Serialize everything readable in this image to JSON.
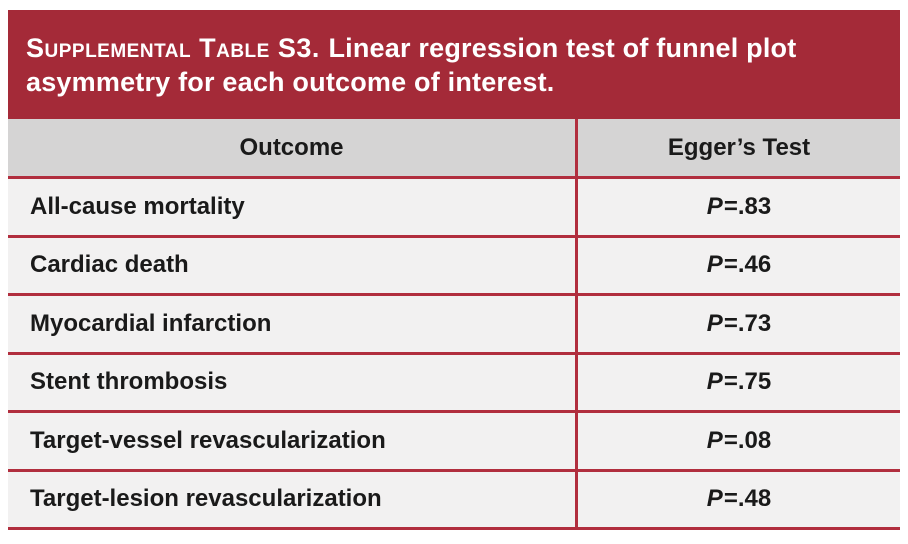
{
  "title": {
    "label_smallcaps": "Supplemental Table S3.",
    "label_rest": "Linear regression test of funnel plot asymmetry for each outcome of interest."
  },
  "columns": {
    "outcome": "Outcome",
    "egger": "Egger’s Test"
  },
  "rows": [
    {
      "outcome": "All-cause mortality",
      "p_label": "P",
      "p_value": "=.83"
    },
    {
      "outcome": "Cardiac death",
      "p_label": "P",
      "p_value": "=.46"
    },
    {
      "outcome": "Myocardial infarction",
      "p_label": "P",
      "p_value": "=.73"
    },
    {
      "outcome": "Stent thrombosis",
      "p_label": "P",
      "p_value": "=.75"
    },
    {
      "outcome": "Target-vessel revascularization",
      "p_label": "P",
      "p_value": "=.08"
    },
    {
      "outcome": "Target-lesion revascularization",
      "p_label": "P",
      "p_value": "=.48"
    }
  ],
  "colors": {
    "header_red": "#A42A38",
    "divider_red": "#B12E3E",
    "header_gray": "#D5D4D4",
    "row_bg": "#F2F1F1",
    "text_dark": "#1A1A1A"
  }
}
